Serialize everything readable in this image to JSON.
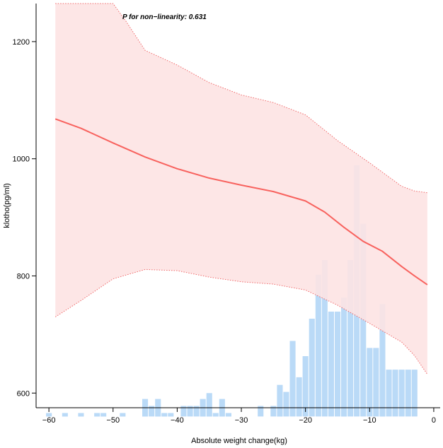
{
  "chart_data": {
    "type": "line",
    "title": "",
    "xlabel": "Absolute weight change(kg)",
    "ylabel": "klotho(pg/ml)",
    "annotation": "P for non−linearity: 0.631",
    "xlim": [
      -62,
      1
    ],
    "ylim": [
      575,
      1265
    ],
    "x_ticks": [
      -60,
      -50,
      -40,
      -30,
      -20,
      -10,
      0
    ],
    "x_tick_labels": [
      "−60",
      "−50",
      "−40",
      "−30",
      "−20",
      "−10",
      "0"
    ],
    "y_ticks": [
      600,
      800,
      1000,
      1200
    ],
    "y_tick_labels": [
      "600",
      "800",
      "1000",
      "1200"
    ],
    "grid": false,
    "colors": {
      "curve": "#f8625e",
      "ci_fill": "#fde3e3",
      "ci_border": "#f0696a",
      "histogram": "#aed3f6",
      "overlap": "#c8c4e0"
    },
    "series": [
      {
        "type": "line",
        "x": [
          -59,
          -55,
          -50,
          -45,
          -40,
          -35,
          -30,
          -25,
          -20,
          -17,
          -14,
          -11,
          -8,
          -5,
          -3,
          -1
        ],
        "y": [
          1068,
          1052,
          1027,
          1003,
          983,
          967,
          955,
          944,
          928,
          909,
          883,
          859,
          842,
          816,
          800,
          785
        ]
      },
      {
        "type": "ci_upper",
        "x": [
          -59,
          -53,
          -50,
          -48,
          -45,
          -40,
          -35,
          -30,
          -25,
          -20,
          -15,
          -10,
          -5,
          -3,
          -1
        ],
        "y": [
          1270,
          1270,
          1265,
          1235,
          1185,
          1160,
          1130,
          1109,
          1096,
          1075,
          1031,
          993,
          953,
          945,
          942
        ]
      },
      {
        "type": "ci_lower",
        "x": [
          -59,
          -55,
          -50,
          -45,
          -40,
          -35,
          -30,
          -25,
          -20,
          -15,
          -10,
          -5,
          -3,
          -1
        ],
        "y": [
          730,
          758,
          795,
          811,
          809,
          798,
          790,
          786,
          776,
          750,
          719,
          687,
          664,
          632
        ]
      }
    ],
    "histogram": {
      "x": [
        -60,
        -57.5,
        -55,
        -52.5,
        -51.5,
        -48.5,
        -45,
        -44,
        -43,
        -42,
        -41,
        -40,
        -39,
        -38,
        -37,
        -36,
        -35,
        -34,
        -33,
        -32,
        -31,
        -30,
        -29,
        -28,
        -27,
        -26,
        -25,
        -24,
        -23,
        -22,
        -21,
        -20,
        -19,
        -18,
        -17,
        -16,
        -15,
        -14,
        -13,
        -12,
        -11,
        -10,
        -9,
        -8,
        -7,
        -6,
        -5,
        -4,
        -3
      ],
      "y": [
        566,
        566,
        566,
        566,
        566,
        566,
        590,
        578,
        590,
        566,
        566,
        553,
        578,
        578,
        578,
        590,
        600,
        566,
        590,
        566,
        553,
        540,
        515,
        527,
        578,
        503,
        578,
        614,
        602,
        689,
        627,
        663,
        727,
        802,
        827,
        739,
        739,
        763,
        827,
        989,
        889,
        677,
        677,
        752,
        640,
        640,
        640,
        640,
        640
      ]
    }
  }
}
